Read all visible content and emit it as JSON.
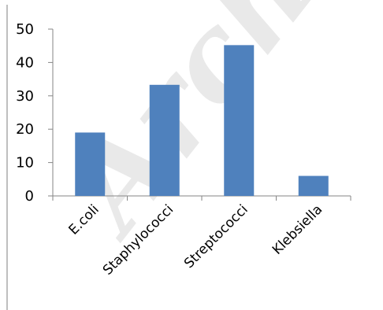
{
  "watermark": "Arch",
  "chart_data": {
    "type": "bar",
    "categories": [
      "E.coli",
      "Staphylococci",
      "Streptococci",
      "Klebsiella"
    ],
    "values": [
      19,
      33.3,
      45.2,
      6
    ],
    "ylim": [
      0,
      50
    ],
    "yticks": [
      0,
      10,
      20,
      30,
      40,
      50
    ],
    "grid": false,
    "legend": "none",
    "bar_color": "#4f81bd",
    "axis_color": "#868686"
  }
}
